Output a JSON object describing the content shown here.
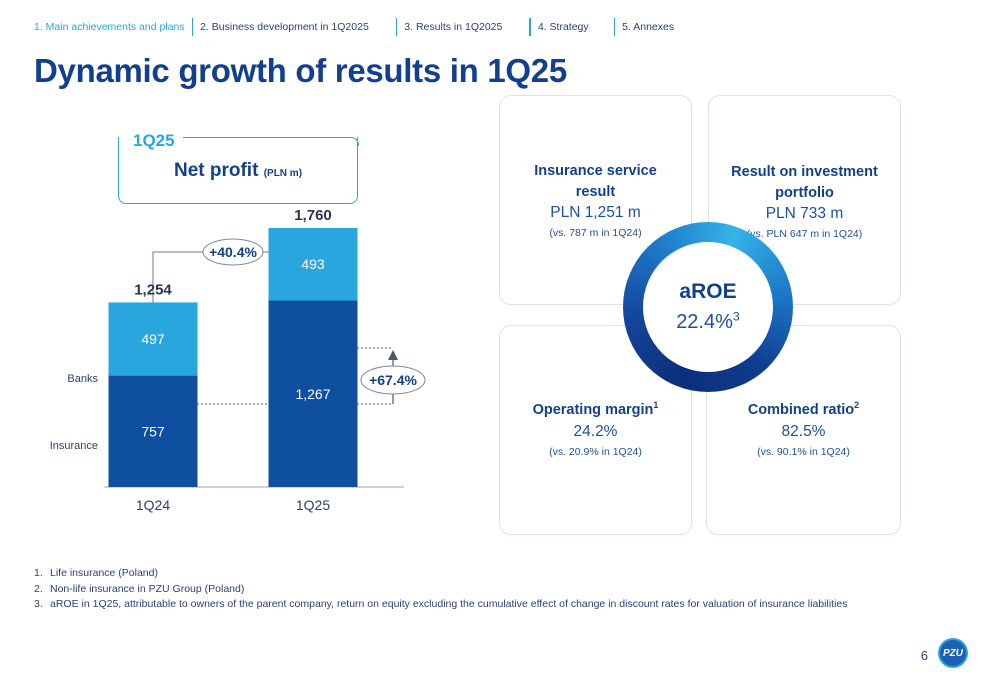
{
  "nav": {
    "items": [
      "1. Main achievements and plans",
      "2. Business development in 1Q2025",
      "3. Results in 1Q2025",
      "4. Strategy",
      "5. Annexes"
    ]
  },
  "title": "Dynamic growth of results in 1Q25",
  "net_profit": {
    "period": "1Q25",
    "title": "Net profit",
    "unit": "(PLN m)"
  },
  "chart_data": {
    "type": "bar",
    "stacked": true,
    "categories": [
      "1Q24",
      "1Q25"
    ],
    "series": [
      {
        "name": "Insurance",
        "values": [
          757,
          1267
        ],
        "color": "#0f4fa0"
      },
      {
        "name": "Banks",
        "values": [
          497,
          493
        ],
        "color": "#2aa6df"
      }
    ],
    "totals": [
      "1,254",
      "1,760"
    ],
    "value_labels": {
      "Insurance": [
        "757",
        "1,267"
      ],
      "Banks": [
        "497",
        "493"
      ]
    },
    "annotations": [
      "+40.4%",
      "+67.4%"
    ],
    "ylim": [
      0,
      1950
    ]
  },
  "kpis": {
    "insurance": {
      "title_line1": "Insurance service",
      "title_line2": "result",
      "value": "PLN 1,251 m",
      "comparison": "(vs.  787 m in 1Q24)"
    },
    "investment": {
      "title_line1": "Result on investment",
      "title_line2": "portfolio",
      "value": "PLN 733 m",
      "comparison": "(vs. PLN 647 m in 1Q24)"
    },
    "operating": {
      "title": "Operating margin",
      "footnote_ref": "1",
      "value": "24.2%",
      "comparison": "(vs. 20.9% in 1Q24)"
    },
    "combined": {
      "title": "Combined ratio",
      "footnote_ref": "2",
      "value": "82.5%",
      "comparison": "(vs. 90.1% in 1Q24)"
    },
    "aroe": {
      "label": "aROE",
      "value": "22.4%",
      "footnote_ref": "3"
    }
  },
  "footnotes": [
    {
      "num": "1.",
      "text": "Life insurance (Poland)"
    },
    {
      "num": "2.",
      "text": "Non-life insurance in PZU Group (Poland)"
    },
    {
      "num": "3.",
      "text": "aROE in 1Q25, attributable to owners of the parent company, return on equity excluding the cumulative effect of change in discount rates for valuation of insurance liabilities"
    }
  ],
  "page_number": "6",
  "logo_text": "PZU",
  "colors": {
    "accent": "#2aa6df",
    "primary": "#12408f"
  }
}
